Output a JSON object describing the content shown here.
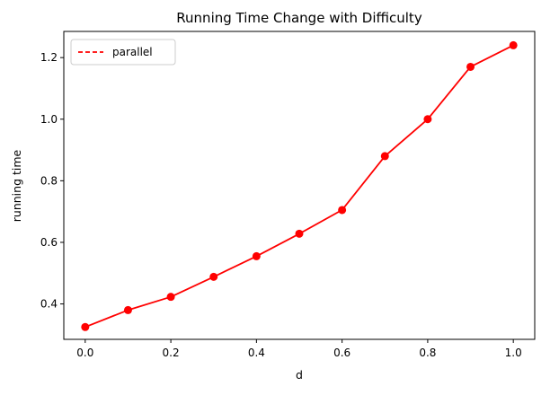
{
  "chart_data": {
    "type": "line",
    "title": "Running Time Change with Difficulty",
    "xlabel": "d",
    "ylabel": "running time",
    "xlim": [
      -0.05,
      1.05
    ],
    "ylim": [
      0.285,
      1.285
    ],
    "xticks": [
      0.0,
      0.2,
      0.4,
      0.6,
      0.8,
      1.0
    ],
    "xtick_labels": [
      "0.0",
      "0.2",
      "0.4",
      "0.6",
      "0.8",
      "1.0"
    ],
    "yticks": [
      0.4,
      0.6,
      0.8,
      1.0,
      1.2
    ],
    "ytick_labels": [
      "0.4",
      "0.6",
      "0.8",
      "1.0",
      "1.2"
    ],
    "grid": false,
    "legend_position": "top-left",
    "series": [
      {
        "name": "parallel",
        "color": "#ff0000",
        "legend_line_style": "dashed",
        "x": [
          0.0,
          0.1,
          0.2,
          0.3,
          0.4,
          0.5,
          0.6,
          0.7,
          0.8,
          0.9,
          1.0
        ],
        "y": [
          0.325,
          0.38,
          0.423,
          0.488,
          0.555,
          0.628,
          0.705,
          0.88,
          1.0,
          1.17,
          1.24
        ]
      }
    ]
  }
}
